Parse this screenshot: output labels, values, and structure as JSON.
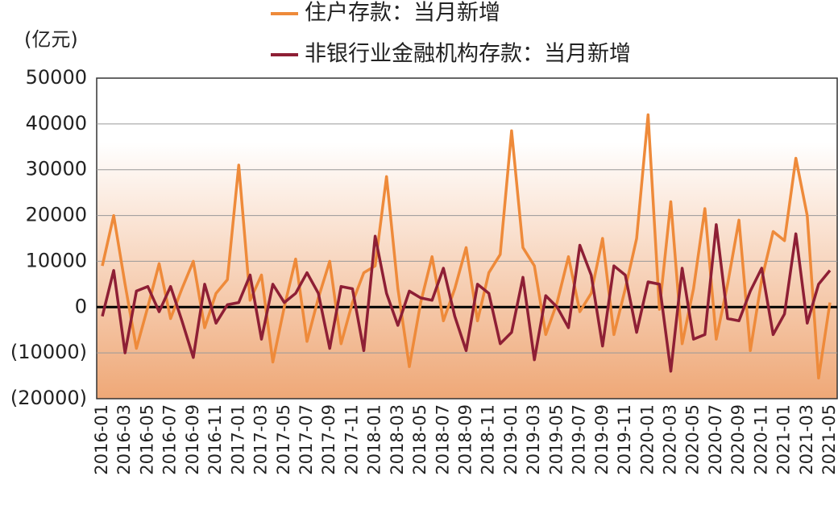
{
  "chart_data": {
    "type": "line",
    "y_label": "(亿元)",
    "categories": [
      "2016-01",
      null,
      "2016-03",
      null,
      "2016-05",
      null,
      "2016-07",
      null,
      "2016-09",
      null,
      "2016-11",
      null,
      "2017-01",
      null,
      "2017-03",
      null,
      "2017-05",
      null,
      "2017-07",
      null,
      "2017-09",
      null,
      "2017-11",
      null,
      "2018-01",
      null,
      "2018-03",
      null,
      "2018-05",
      null,
      "2018-07",
      null,
      "2018-09",
      null,
      "2018-11",
      null,
      "2019-01",
      null,
      "2019-03",
      null,
      "2019-05",
      null,
      "2019-07",
      null,
      "2019-09",
      null,
      "2019-11",
      null,
      "2020-01",
      null,
      "2020-03",
      null,
      "2020-05",
      null,
      "2020-07",
      null,
      "2020-09",
      null,
      "2020-11",
      null,
      "2021-01",
      null,
      "2021-03",
      null,
      "2021-05"
    ],
    "series": [
      {
        "name": "住户存款：当月新增",
        "color": "#ee8a3a",
        "values": [
          9000,
          20000,
          5000,
          -9000,
          0,
          9500,
          -2500,
          4000,
          10000,
          -4500,
          3000,
          6000,
          31000,
          1500,
          7000,
          -12000,
          0,
          10500,
          -7500,
          2000,
          10000,
          -8000,
          1000,
          7500,
          9000,
          28500,
          4000,
          -13000,
          1000,
          11000,
          -3000,
          4000,
          13000,
          -3000,
          7500,
          11500,
          38500,
          13000,
          9000,
          -6000,
          1000,
          11000,
          -1000,
          3000,
          15000,
          -6000,
          4000,
          15000,
          42000,
          -500,
          23000,
          -8000,
          4000,
          21500,
          -7000,
          5000,
          19000,
          -9500,
          6000,
          16500,
          14500,
          32500,
          20000,
          -15500,
          1000
        ]
      },
      {
        "name": "非银行业金融机构存款：当月新增",
        "color": "#8e1f35",
        "values": [
          -2000,
          8000,
          -10000,
          3500,
          4500,
          -1000,
          4500,
          -3000,
          -11000,
          5000,
          -3500,
          500,
          1000,
          7000,
          -7000,
          5000,
          1000,
          3000,
          7500,
          3000,
          -9000,
          4500,
          4000,
          -9500,
          15500,
          3000,
          -4000,
          3500,
          2000,
          1500,
          8500,
          -2000,
          -9500,
          5000,
          3000,
          -8000,
          -5500,
          6500,
          -11500,
          2500,
          0,
          -4500,
          13500,
          7000,
          -8500,
          9000,
          7000,
          -5500,
          5500,
          5000,
          -14000,
          8500,
          -7000,
          -6000,
          18000,
          -2500,
          -3000,
          3500,
          8500,
          -6000,
          -1500,
          16000,
          -3500,
          5000,
          8000
        ]
      }
    ],
    "ylim": [
      -20000,
      50000
    ],
    "yticks": [
      {
        "value": -20000,
        "label": "(20000)"
      },
      {
        "value": -10000,
        "label": "(10000)"
      },
      0,
      10000,
      20000,
      30000,
      40000,
      50000
    ],
    "grid": true,
    "legend": "top"
  }
}
